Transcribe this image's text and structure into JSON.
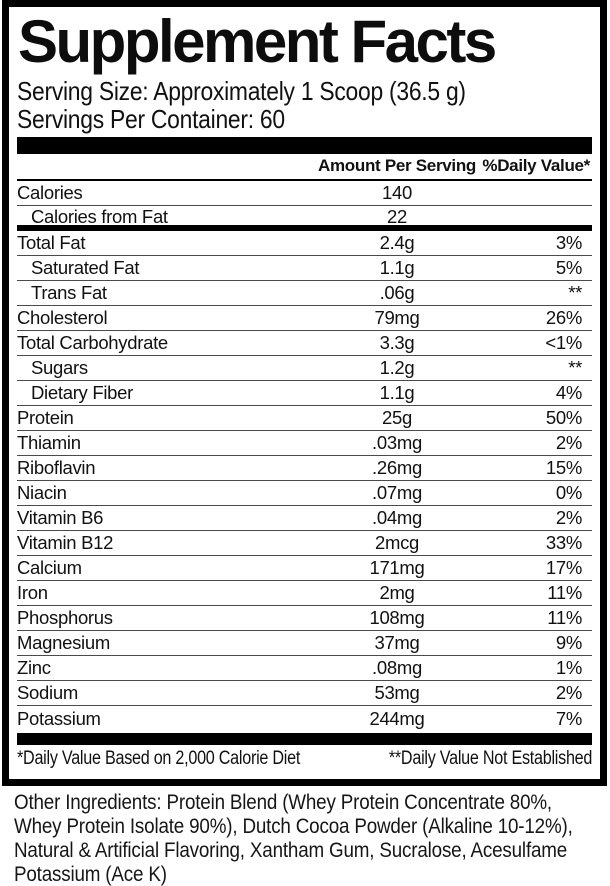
{
  "title": "Supplement Facts",
  "serving": {
    "serving_size": "Serving Size: Approximately 1 Scoop (36.5 g)",
    "servings_per_container": "Servings Per Container: 60"
  },
  "table": {
    "headers": {
      "amount": "Amount Per Serving",
      "dv": "%Daily Value*"
    },
    "rows": [
      {
        "label": "Calories",
        "amount": "140",
        "dv": "",
        "indent": false,
        "divider_after": "thin"
      },
      {
        "label": "Calories from Fat",
        "amount": "22",
        "dv": "",
        "indent": true,
        "divider_after": "thick"
      },
      {
        "label": "Total Fat",
        "amount": "2.4g",
        "dv": "3%",
        "indent": false,
        "divider_after": "thin"
      },
      {
        "label": "Saturated Fat",
        "amount": "1.1g",
        "dv": "5%",
        "indent": true,
        "divider_after": "thin"
      },
      {
        "label": "Trans Fat",
        "amount": ".06g",
        "dv": "**",
        "indent": true,
        "divider_after": "thin"
      },
      {
        "label": "Cholesterol",
        "amount": "79mg",
        "dv": "26%",
        "indent": false,
        "divider_after": "thin"
      },
      {
        "label": "Total Carbohydrate",
        "amount": "3.3g",
        "dv": "<1%",
        "indent": false,
        "divider_after": "thin"
      },
      {
        "label": "Sugars",
        "amount": "1.2g",
        "dv": "**",
        "indent": true,
        "divider_after": "thin"
      },
      {
        "label": "Dietary Fiber",
        "amount": "1.1g",
        "dv": "4%",
        "indent": true,
        "divider_after": "thin"
      },
      {
        "label": "Protein",
        "amount": "25g",
        "dv": "50%",
        "indent": false,
        "divider_after": "thin"
      },
      {
        "label": "Thiamin",
        "amount": ".03mg",
        "dv": "2%",
        "indent": false,
        "divider_after": "thin"
      },
      {
        "label": "Riboflavin",
        "amount": ".26mg",
        "dv": "15%",
        "indent": false,
        "divider_after": "thin"
      },
      {
        "label": "Niacin",
        "amount": ".07mg",
        "dv": "0%",
        "indent": false,
        "divider_after": "thin"
      },
      {
        "label": "Vitamin B6",
        "amount": ".04mg",
        "dv": "2%",
        "indent": false,
        "divider_after": "thin"
      },
      {
        "label": "Vitamin B12",
        "amount": "2mcg",
        "dv": "33%",
        "indent": false,
        "divider_after": "thin"
      },
      {
        "label": "Calcium",
        "amount": "171mg",
        "dv": "17%",
        "indent": false,
        "divider_after": "thin"
      },
      {
        "label": "Iron",
        "amount": "2mg",
        "dv": "11%",
        "indent": false,
        "divider_after": "thin"
      },
      {
        "label": "Phosphorus",
        "amount": "108mg",
        "dv": "11%",
        "indent": false,
        "divider_after": "thin"
      },
      {
        "label": "Magnesium",
        "amount": "37mg",
        "dv": "9%",
        "indent": false,
        "divider_after": "thin"
      },
      {
        "label": "Zinc",
        "amount": ".08mg",
        "dv": "1%",
        "indent": false,
        "divider_after": "thin"
      },
      {
        "label": "Sodium",
        "amount": "53mg",
        "dv": "2%",
        "indent": false,
        "divider_after": "thin"
      },
      {
        "label": "Potassium",
        "amount": "244mg",
        "dv": "7%",
        "indent": false,
        "divider_after": "none"
      }
    ]
  },
  "footnotes": {
    "dv_based": "*Daily Value Based on 2,000 Calorie Diet",
    "dv_not_established": "**Daily Value Not Established"
  },
  "other_ingredients": "Other Ingredients: Protein Blend (Whey Protein Concentrate 80%, Whey Protein Isolate 90%), Dutch Cocoa Powder (Alkaline 10-12%), Natural & Artificial Flavoring, Xantham Gum, Sucralose, Acesulfame Potassium (Ace K)",
  "colors": {
    "frame_border": "#000000",
    "row_separator": "#4a4a4a",
    "text": "#111111",
    "background": "#ffffff"
  }
}
